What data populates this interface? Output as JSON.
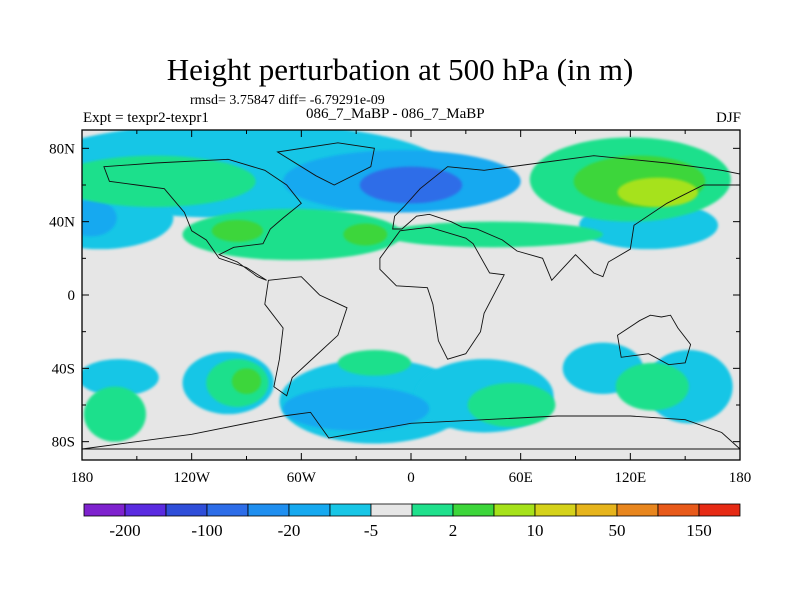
{
  "title": "Height perturbation at 500 hPa (in m)",
  "stats": "rmsd= 3.75847 diff= -6.79291e-09",
  "left_label": "Expt = texpr2-texpr1",
  "center_label": "086_7_MaBP - 086_7_MaBP",
  "right_label": "DJF",
  "chart_data": {
    "type": "heatmap",
    "title": "Height perturbation at 500 hPa (in m)",
    "xlim": [
      -180,
      180
    ],
    "ylim": [
      -90,
      90
    ],
    "x_ticks": [
      {
        "v": -180,
        "label": "180"
      },
      {
        "v": -120,
        "label": "120W"
      },
      {
        "v": -60,
        "label": "60W"
      },
      {
        "v": 0,
        "label": "0"
      },
      {
        "v": 60,
        "label": "60E"
      },
      {
        "v": 120,
        "label": "120E"
      },
      {
        "v": 180,
        "label": "180"
      }
    ],
    "y_ticks": [
      {
        "v": 80,
        "label": "80N"
      },
      {
        "v": 40,
        "label": "40N"
      },
      {
        "v": 0,
        "label": "0"
      },
      {
        "v": -40,
        "label": "40S"
      },
      {
        "v": -80,
        "label": "80S"
      }
    ],
    "colorbar": {
      "colors": [
        "#7e22ce",
        "#5a2be0",
        "#2f4ed9",
        "#2d6de8",
        "#1f8ff0",
        "#16a9f0",
        "#18c6e6",
        "#e6e6e6",
        "#1fe08c",
        "#3dd63a",
        "#a6e21a",
        "#d5d21a",
        "#e6b41c",
        "#e8861e",
        "#e85a1a",
        "#e62a14"
      ],
      "labels": [
        {
          "index": 1,
          "label": "-200"
        },
        {
          "index": 3,
          "label": "-100"
        },
        {
          "index": 5,
          "label": "-20"
        },
        {
          "index": 7,
          "label": "-5"
        },
        {
          "index": 9,
          "label": "2"
        },
        {
          "index": 11,
          "label": "10"
        },
        {
          "index": 13,
          "label": "50"
        },
        {
          "index": 15,
          "label": "150"
        }
      ]
    },
    "background_color": "#e6e6e6",
    "anomaly_regions": [
      {
        "level": -5,
        "color": "#18c6e6",
        "lon": -95,
        "lat": 68,
        "rlon": 115,
        "rlat": 26
      },
      {
        "level": -5,
        "color": "#18c6e6",
        "lon": -170,
        "lat": 42,
        "rlon": 40,
        "rlat": 17
      },
      {
        "level": -5,
        "color": "#18c6e6",
        "lon": -20,
        "lat": -58,
        "rlon": 52,
        "rlat": 23
      },
      {
        "level": -5,
        "color": "#18c6e6",
        "lon": -160,
        "lat": -45,
        "rlon": 22,
        "rlat": 10
      },
      {
        "level": -5,
        "color": "#18c6e6",
        "lon": -100,
        "lat": -48,
        "rlon": 25,
        "rlat": 17
      },
      {
        "level": -5,
        "color": "#18c6e6",
        "lon": 40,
        "lat": -55,
        "rlon": 38,
        "rlat": 20
      },
      {
        "level": -5,
        "color": "#18c6e6",
        "lon": 105,
        "lat": -40,
        "rlon": 22,
        "rlat": 14
      },
      {
        "level": -5,
        "color": "#18c6e6",
        "lon": 152,
        "lat": -50,
        "rlon": 24,
        "rlat": 20
      },
      {
        "level": -5,
        "color": "#18c6e6",
        "lon": 130,
        "lat": 38,
        "rlon": 38,
        "rlat": 13
      },
      {
        "level": -20,
        "color": "#16a9f0",
        "lon": -5,
        "lat": 62,
        "rlon": 65,
        "rlat": 17
      },
      {
        "level": -20,
        "color": "#16a9f0",
        "lon": -30,
        "lat": -62,
        "rlon": 40,
        "rlat": 12
      },
      {
        "level": -20,
        "color": "#16a9f0",
        "lon": -175,
        "lat": 42,
        "rlon": 14,
        "rlat": 10
      },
      {
        "level": -100,
        "color": "#2d6de8",
        "lon": 0,
        "lat": 60,
        "rlon": 28,
        "rlat": 10
      },
      {
        "level": 2,
        "color": "#1fe08c",
        "lon": 120,
        "lat": 63,
        "rlon": 55,
        "rlat": 23
      },
      {
        "level": 2,
        "color": "#1fe08c",
        "lon": -65,
        "lat": 33,
        "rlon": 60,
        "rlat": 14
      },
      {
        "level": 2,
        "color": "#1fe08c",
        "lon": -140,
        "lat": 62,
        "rlon": 55,
        "rlat": 14
      },
      {
        "level": 2,
        "color": "#1fe08c",
        "lon": -162,
        "lat": -65,
        "rlon": 17,
        "rlat": 15
      },
      {
        "level": 2,
        "color": "#1fe08c",
        "lon": -95,
        "lat": -48,
        "rlon": 17,
        "rlat": 13
      },
      {
        "level": 2,
        "color": "#1fe08c",
        "lon": 55,
        "lat": -60,
        "rlon": 24,
        "rlat": 12
      },
      {
        "level": 2,
        "color": "#1fe08c",
        "lon": 132,
        "lat": -50,
        "rlon": 20,
        "rlat": 13
      },
      {
        "level": 2,
        "color": "#1fe08c",
        "lon": -20,
        "lat": -37,
        "rlon": 20,
        "rlat": 7
      },
      {
        "level": 2,
        "color": "#1fe08c",
        "lon": 45,
        "lat": 33,
        "rlon": 60,
        "rlat": 7
      },
      {
        "level": 10,
        "color": "#3dd63a",
        "lon": 125,
        "lat": 62,
        "rlon": 36,
        "rlat": 14
      },
      {
        "level": 10,
        "color": "#3dd63a",
        "lon": -90,
        "lat": -47,
        "rlon": 8,
        "rlat": 7
      },
      {
        "level": 10,
        "color": "#3dd63a",
        "lon": -25,
        "lat": 33,
        "rlon": 12,
        "rlat": 6
      },
      {
        "level": 10,
        "color": "#3dd63a",
        "lon": -95,
        "lat": 35,
        "rlon": 14,
        "rlat": 6
      },
      {
        "level": 50,
        "color": "#a6e21a",
        "lon": 135,
        "lat": 56,
        "rlon": 22,
        "rlat": 8
      }
    ],
    "coastline_outlines": [
      {
        "name": "north-america",
        "points": [
          [
            -168,
            70
          ],
          [
            -140,
            72
          ],
          [
            -100,
            74
          ],
          [
            -80,
            68
          ],
          [
            -68,
            60
          ],
          [
            -60,
            50
          ],
          [
            -70,
            42
          ],
          [
            -77,
            36
          ],
          [
            -81,
            28
          ],
          [
            -97,
            26
          ],
          [
            -105,
            22
          ],
          [
            -95,
            18
          ],
          [
            -84,
            10
          ],
          [
            -79,
            8
          ],
          [
            -90,
            15
          ],
          [
            -105,
            20
          ],
          [
            -112,
            30
          ],
          [
            -120,
            35
          ],
          [
            -124,
            45
          ],
          [
            -135,
            58
          ],
          [
            -150,
            60
          ],
          [
            -165,
            62
          ]
        ]
      },
      {
        "name": "south-america",
        "points": [
          [
            -78,
            8
          ],
          [
            -60,
            10
          ],
          [
            -50,
            0
          ],
          [
            -35,
            -7
          ],
          [
            -40,
            -22
          ],
          [
            -52,
            -33
          ],
          [
            -65,
            -45
          ],
          [
            -68,
            -55
          ],
          [
            -75,
            -50
          ],
          [
            -72,
            -35
          ],
          [
            -70,
            -18
          ],
          [
            -80,
            -5
          ]
        ]
      },
      {
        "name": "eurasia",
        "points": [
          [
            -10,
            36
          ],
          [
            -9,
            43
          ],
          [
            -4,
            48
          ],
          [
            5,
            58
          ],
          [
            20,
            70
          ],
          [
            40,
            68
          ],
          [
            70,
            72
          ],
          [
            100,
            76
          ],
          [
            140,
            72
          ],
          [
            170,
            68
          ],
          [
            180,
            66
          ],
          [
            180,
            60
          ],
          [
            160,
            60
          ],
          [
            140,
            50
          ],
          [
            122,
            38
          ],
          [
            120,
            25
          ],
          [
            108,
            18
          ],
          [
            105,
            10
          ],
          [
            100,
            12
          ],
          [
            90,
            22
          ],
          [
            77,
            8
          ],
          [
            72,
            20
          ],
          [
            58,
            24
          ],
          [
            50,
            30
          ],
          [
            36,
            36
          ],
          [
            28,
            37
          ],
          [
            22,
            40
          ],
          [
            10,
            44
          ],
          [
            3,
            43
          ],
          [
            -5,
            36
          ]
        ]
      },
      {
        "name": "africa",
        "points": [
          [
            -17,
            20
          ],
          [
            -6,
            35
          ],
          [
            10,
            37
          ],
          [
            30,
            31
          ],
          [
            34,
            28
          ],
          [
            43,
            12
          ],
          [
            51,
            11
          ],
          [
            40,
            -10
          ],
          [
            38,
            -20
          ],
          [
            30,
            -32
          ],
          [
            20,
            -35
          ],
          [
            15,
            -25
          ],
          [
            12,
            -5
          ],
          [
            9,
            4
          ],
          [
            -8,
            5
          ],
          [
            -17,
            14
          ]
        ]
      },
      {
        "name": "australia",
        "points": [
          [
            113,
            -22
          ],
          [
            125,
            -14
          ],
          [
            131,
            -11
          ],
          [
            137,
            -12
          ],
          [
            142,
            -11
          ],
          [
            146,
            -18
          ],
          [
            153,
            -27
          ],
          [
            150,
            -37
          ],
          [
            141,
            -38
          ],
          [
            130,
            -32
          ],
          [
            115,
            -34
          ]
        ]
      },
      {
        "name": "greenland",
        "points": [
          [
            -73,
            78
          ],
          [
            -40,
            83
          ],
          [
            -20,
            80
          ],
          [
            -22,
            70
          ],
          [
            -42,
            60
          ],
          [
            -52,
            65
          ]
        ]
      },
      {
        "name": "antarctica",
        "points": [
          [
            -180,
            -84
          ],
          [
            -120,
            -76
          ],
          [
            -70,
            -66
          ],
          [
            -55,
            -64
          ],
          [
            -45,
            -78
          ],
          [
            0,
            -70
          ],
          [
            40,
            -68
          ],
          [
            80,
            -66
          ],
          [
            120,
            -66
          ],
          [
            150,
            -68
          ],
          [
            170,
            -75
          ],
          [
            180,
            -84
          ]
        ]
      }
    ]
  }
}
